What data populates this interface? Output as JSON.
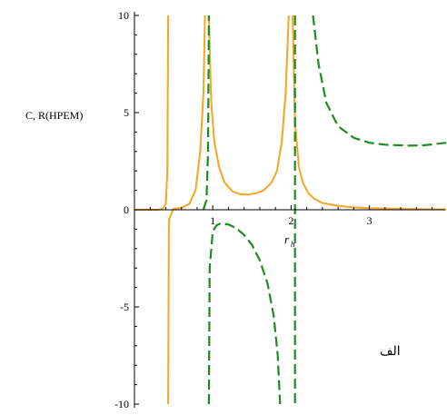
{
  "chart_data": {
    "type": "line",
    "ylabel": "C, R(HPEM)",
    "xlabel": "r",
    "xlabel_sub": "h",
    "annotation": "الف",
    "xlim": [
      0.0,
      3.98
    ],
    "ylim": [
      -10,
      10
    ],
    "x_ticks": [
      1,
      2,
      3
    ],
    "x_tick_labels": [
      "1",
      "2",
      "3"
    ],
    "y_ticks": [
      10,
      5,
      0,
      -5,
      -10
    ],
    "y_tick_labels": [
      "10",
      "5",
      "0",
      "-5",
      "-10"
    ],
    "grid": false,
    "legend": "none",
    "series": [
      {
        "color": "#f5a623",
        "style": "solid",
        "segments": [
          [
            [
              0.0,
              0
            ],
            [
              0.3,
              0
            ],
            [
              0.36,
              0.05
            ],
            [
              0.4,
              0.3
            ],
            [
              0.42,
              2
            ],
            [
              0.43,
              10
            ]
          ],
          [
            [
              0.43,
              -10
            ],
            [
              0.44,
              -0.5
            ],
            [
              0.5,
              0.05
            ],
            [
              0.6,
              0.1
            ],
            [
              0.7,
              0.3
            ],
            [
              0.78,
              1
            ],
            [
              0.84,
              3
            ],
            [
              0.88,
              6
            ],
            [
              0.9,
              10
            ]
          ],
          [
            [
              0.95,
              10
            ],
            [
              0.98,
              5.5
            ],
            [
              1.02,
              3.5
            ],
            [
              1.08,
              2.2
            ],
            [
              1.15,
              1.4
            ],
            [
              1.25,
              0.95
            ],
            [
              1.35,
              0.8
            ],
            [
              1.45,
              0.78
            ],
            [
              1.55,
              0.85
            ],
            [
              1.65,
              1.0
            ],
            [
              1.75,
              1.4
            ],
            [
              1.82,
              2
            ],
            [
              1.88,
              3.5
            ],
            [
              1.93,
              6
            ],
            [
              1.97,
              10
            ]
          ],
          [
            [
              2.02,
              10
            ],
            [
              2.05,
              4.5
            ],
            [
              2.1,
              2.2
            ],
            [
              2.15,
              1.4
            ],
            [
              2.22,
              0.85
            ],
            [
              2.3,
              0.55
            ],
            [
              2.4,
              0.35
            ],
            [
              2.6,
              0.2
            ],
            [
              2.8,
              0.12
            ],
            [
              3.0,
              0.08
            ],
            [
              3.5,
              0.04
            ],
            [
              3.98,
              0.02
            ]
          ]
        ]
      },
      {
        "color": "#1f8a1f",
        "style": "dashed",
        "segments": [
          [
            [
              0.88,
              0.02
            ],
            [
              0.92,
              0.5
            ],
            [
              0.94,
              3
            ],
            [
              0.95,
              10
            ]
          ],
          [
            [
              0.95,
              -10
            ],
            [
              0.96,
              -3
            ],
            [
              1.0,
              -1.1
            ],
            [
              1.05,
              -0.8
            ],
            [
              1.1,
              -0.7
            ],
            [
              1.2,
              -0.75
            ],
            [
              1.3,
              -0.95
            ],
            [
              1.4,
              -1.3
            ],
            [
              1.5,
              -1.8
            ],
            [
              1.6,
              -2.6
            ],
            [
              1.7,
              -3.8
            ],
            [
              1.78,
              -5.5
            ],
            [
              1.83,
              -7.5
            ],
            [
              1.86,
              -10
            ]
          ],
          [
            [
              2.05,
              10
            ],
            [
              2.05,
              -10
            ]
          ],
          [
            [
              2.28,
              10
            ],
            [
              2.35,
              7.5
            ],
            [
              2.45,
              5.5
            ],
            [
              2.6,
              4.3
            ],
            [
              2.8,
              3.7
            ],
            [
              3.0,
              3.45
            ],
            [
              3.2,
              3.35
            ],
            [
              3.5,
              3.3
            ],
            [
              3.7,
              3.32
            ],
            [
              3.98,
              3.45
            ]
          ]
        ]
      }
    ]
  }
}
